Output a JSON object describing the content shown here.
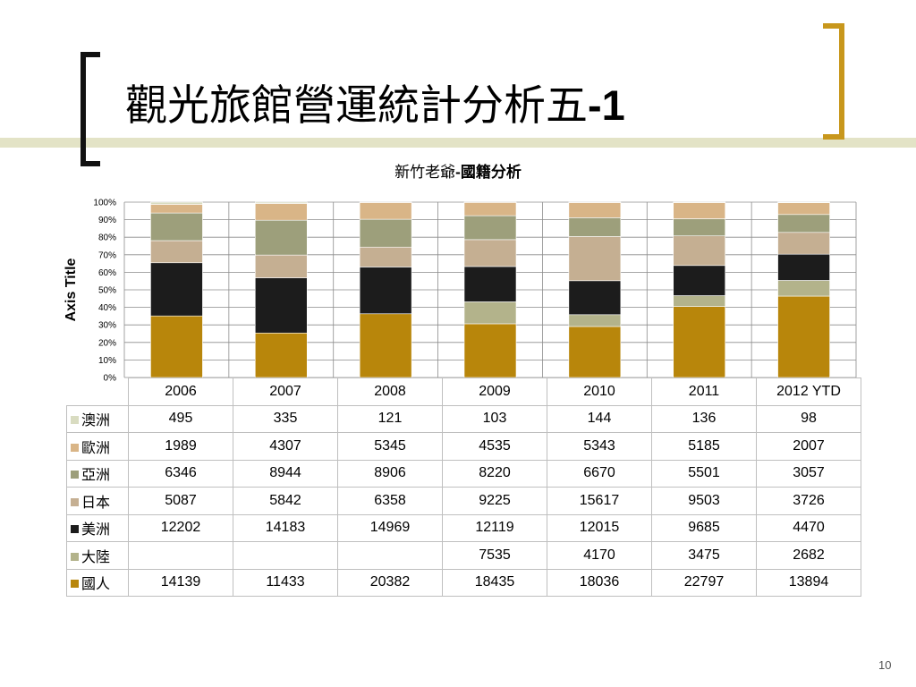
{
  "slide": {
    "title_main": "觀光旅館營運統計分析五",
    "title_suffix": "-1",
    "page_number": "10"
  },
  "colors": {
    "澳洲": "#d9dcc1",
    "歐洲": "#d9b587",
    "亞洲": "#9d9f7b",
    "日本": "#c5af92",
    "美洲": "#1c1c1c",
    "大陸": "#b3b38b",
    "國人": "#b8860b",
    "bracket_left": "#111111",
    "bracket_right": "#c8971c"
  },
  "chart_data": {
    "type": "bar",
    "stacked": "percent",
    "title_main": "新竹老爺",
    "title_suffix": "-國籍分析",
    "ylabel": "Axis Title",
    "categories": [
      "2006",
      "2007",
      "2008",
      "2009",
      "2010",
      "2011",
      "2012 YTD"
    ],
    "y_ticks": [
      "0%",
      "10%",
      "20%",
      "30%",
      "40%",
      "50%",
      "60%",
      "70%",
      "80%",
      "90%",
      "100%"
    ],
    "ylim": [
      0,
      100
    ],
    "grid": true,
    "series": [
      {
        "name": "澳洲",
        "values": [
          495,
          335,
          121,
          103,
          144,
          136,
          98
        ]
      },
      {
        "name": "歐洲",
        "values": [
          1989,
          4307,
          5345,
          4535,
          5343,
          5185,
          2007
        ]
      },
      {
        "name": "亞洲",
        "values": [
          6346,
          8944,
          8906,
          8220,
          6670,
          5501,
          3057
        ]
      },
      {
        "name": "日本",
        "values": [
          5087,
          5842,
          6358,
          9225,
          15617,
          9503,
          3726
        ]
      },
      {
        "name": "美洲",
        "values": [
          12202,
          14183,
          14969,
          12119,
          12015,
          9685,
          4470
        ]
      },
      {
        "name": "大陸",
        "values": [
          null,
          null,
          null,
          7535,
          4170,
          3475,
          2682
        ]
      },
      {
        "name": "國人",
        "values": [
          14139,
          11433,
          20382,
          18435,
          18036,
          22797,
          13894
        ]
      }
    ]
  }
}
